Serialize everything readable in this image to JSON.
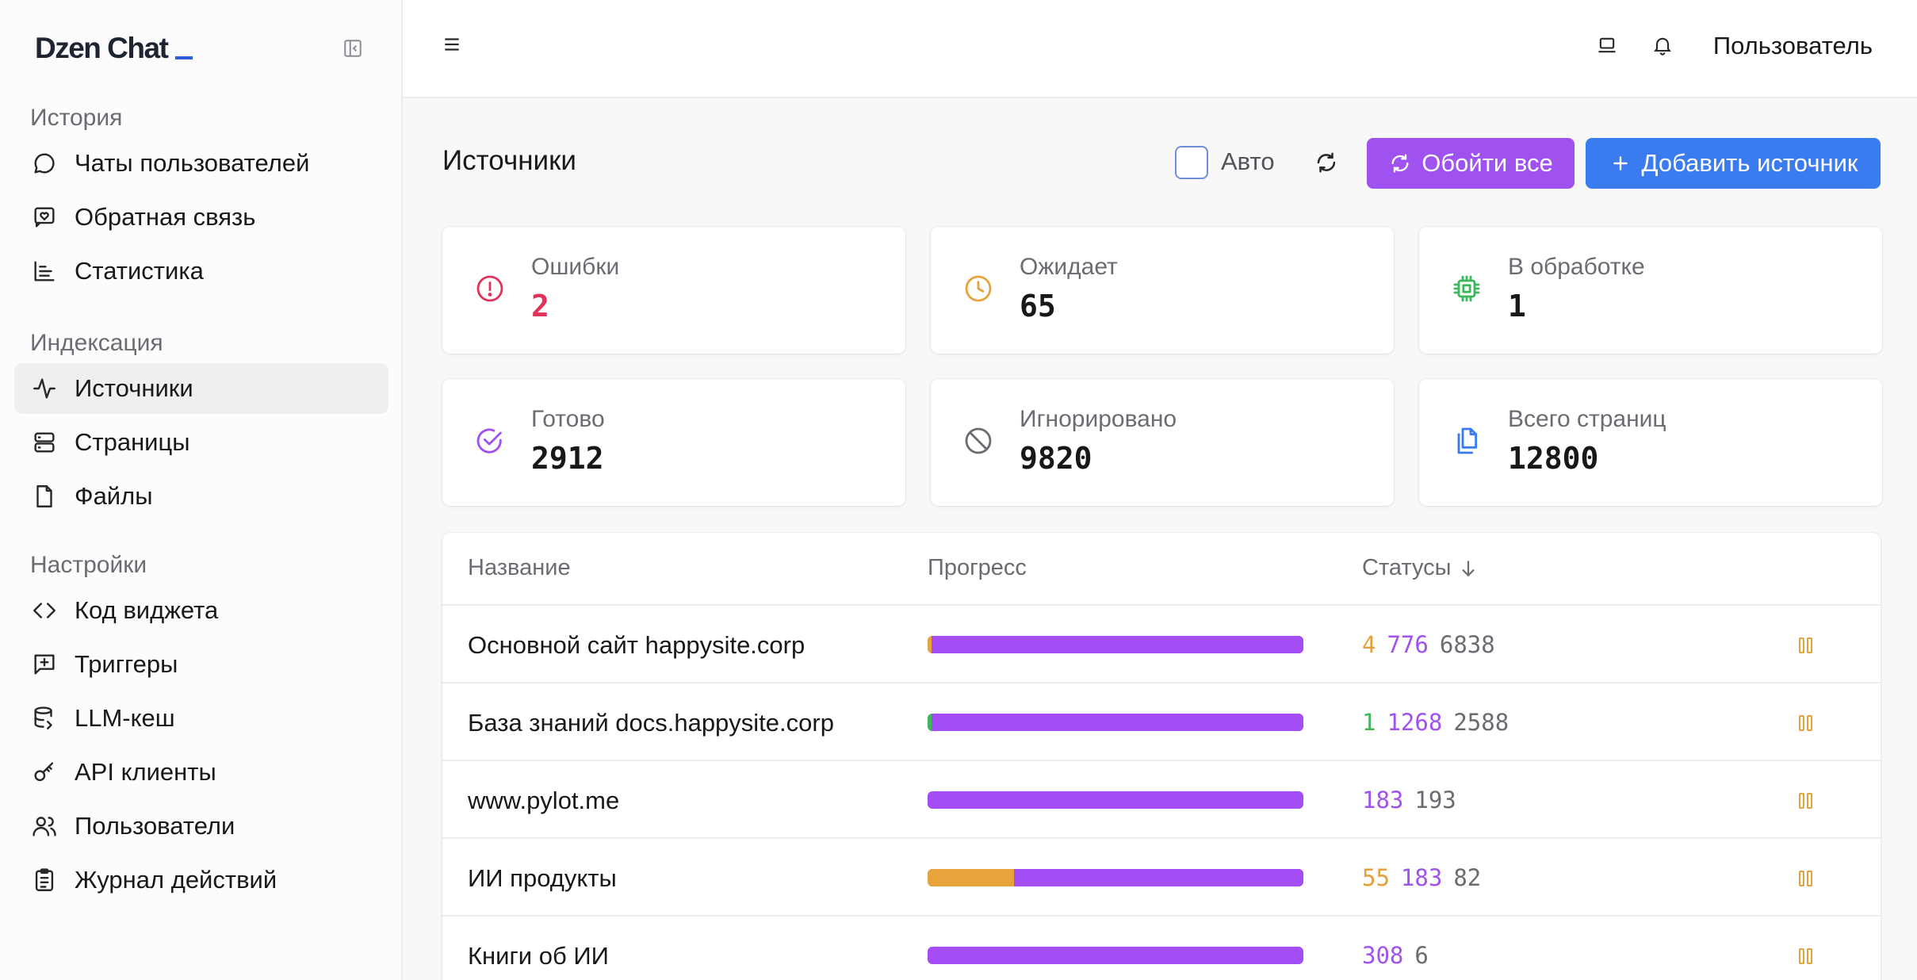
{
  "brand": {
    "name": "Dzen Chat"
  },
  "sidebar": {
    "groups": [
      {
        "title": "История",
        "items": [
          {
            "label": "Чаты пользователей",
            "icon": "chat-bubble-icon"
          },
          {
            "label": "Обратная связь",
            "icon": "feedback-heart-icon"
          },
          {
            "label": "Статистика",
            "icon": "bar-chart-icon"
          }
        ]
      },
      {
        "title": "Индексация",
        "items": [
          {
            "label": "Источники",
            "icon": "activity-pulse-icon",
            "active": true
          },
          {
            "label": "Страницы",
            "icon": "server-rows-icon"
          },
          {
            "label": "Файлы",
            "icon": "file-icon"
          }
        ]
      },
      {
        "title": "Настройки",
        "items": [
          {
            "label": "Код виджета",
            "icon": "code-brackets-icon"
          },
          {
            "label": "Триггеры",
            "icon": "message-plus-icon"
          },
          {
            "label": "LLM-кеш",
            "icon": "database-icon"
          },
          {
            "label": "API клиенты",
            "icon": "key-icon"
          },
          {
            "label": "Пользователи",
            "icon": "users-icon"
          },
          {
            "label": "Журнал действий",
            "icon": "clipboard-list-icon"
          }
        ]
      }
    ]
  },
  "topbar": {
    "user": "Пользователь"
  },
  "page": {
    "title": "Источники",
    "auto_label": "Авто",
    "crawl_all_label": "Обойти все",
    "add_source_label": "Добавить источник"
  },
  "stats": [
    {
      "label": "Ошибки",
      "value": "2",
      "icon": "alert-circle-icon",
      "color": "#e0335a"
    },
    {
      "label": "Ожидает",
      "value": "65",
      "icon": "clock-icon",
      "color": "#e8a33d"
    },
    {
      "label": "В обработке",
      "value": "1",
      "icon": "cpu-chip-icon",
      "color": "#3cb85a"
    },
    {
      "label": "Готово",
      "value": "2912",
      "icon": "check-circle-icon",
      "color": "#a052f0"
    },
    {
      "label": "Игнорировано",
      "value": "9820",
      "icon": "ban-icon",
      "color": "#6b6b73"
    },
    {
      "label": "Всего страниц",
      "value": "12800",
      "icon": "files-copy-icon",
      "color": "#3a7bf0"
    }
  ],
  "table": {
    "columns": {
      "name": "Название",
      "progress": "Прогресс",
      "statuses": "Статусы"
    },
    "rows": [
      {
        "name": "Основной сайт happysite.corp",
        "statuses": [
          {
            "value": "4",
            "color": "yellow"
          },
          {
            "value": "776",
            "color": "purple"
          },
          {
            "value": "6838",
            "color": "gray"
          }
        ],
        "progress": [
          {
            "fraction": 0.01,
            "color": "#e8a33d"
          },
          {
            "fraction": 0.99,
            "color": "#a44cf5"
          }
        ]
      },
      {
        "name": "База знаний docs.happysite.corp",
        "statuses": [
          {
            "value": "1",
            "color": "green"
          },
          {
            "value": "1268",
            "color": "purple"
          },
          {
            "value": "2588",
            "color": "gray"
          }
        ],
        "progress": [
          {
            "fraction": 0.01,
            "color": "#3cb85a"
          },
          {
            "fraction": 0.99,
            "color": "#a44cf5"
          }
        ]
      },
      {
        "name": "www.pylot.me",
        "statuses": [
          {
            "value": "183",
            "color": "purple"
          },
          {
            "value": "193",
            "color": "gray"
          }
        ],
        "progress": [
          {
            "fraction": 1.0,
            "color": "#a44cf5"
          }
        ]
      },
      {
        "name": "ИИ продукты",
        "statuses": [
          {
            "value": "55",
            "color": "yellow"
          },
          {
            "value": "183",
            "color": "purple"
          },
          {
            "value": "82",
            "color": "gray"
          }
        ],
        "progress": [
          {
            "fraction": 0.23,
            "color": "#e8a33d"
          },
          {
            "fraction": 0.77,
            "color": "#a44cf5"
          }
        ]
      },
      {
        "name": "Книги об ИИ",
        "statuses": [
          {
            "value": "308",
            "color": "purple"
          },
          {
            "value": "6",
            "color": "gray"
          }
        ],
        "progress": [
          {
            "fraction": 1.0,
            "color": "#a44cf5"
          }
        ]
      }
    ]
  }
}
